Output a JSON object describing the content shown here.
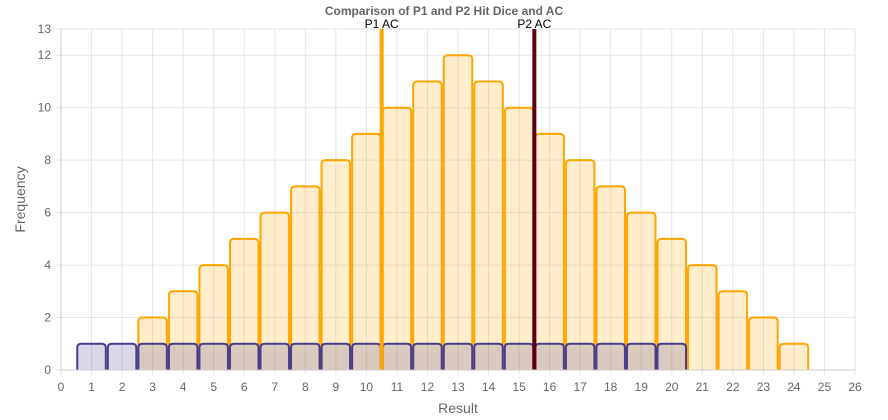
{
  "chart_data": {
    "type": "bar",
    "title": "Comparison of P1 and P2 Hit Dice and AC",
    "xlabel": "Result",
    "ylabel": "Frequency",
    "xlim": [
      0,
      26
    ],
    "ylim": [
      0,
      13
    ],
    "x_ticks": [
      0,
      1,
      2,
      3,
      4,
      5,
      6,
      7,
      8,
      9,
      10,
      11,
      12,
      13,
      14,
      15,
      16,
      17,
      18,
      19,
      20,
      21,
      22,
      23,
      24,
      25,
      26
    ],
    "y_ticks": [
      0,
      2,
      4,
      6,
      8,
      10,
      12,
      13
    ],
    "grid": true,
    "series": [
      {
        "color": "#FFA500",
        "fill": "rgba(255,165,0,0.2)",
        "x": [
          3,
          4,
          5,
          6,
          7,
          8,
          9,
          10,
          11,
          12,
          13,
          14,
          15,
          16,
          17,
          18,
          19,
          20,
          21,
          22,
          23,
          24
        ],
        "values": [
          2,
          3,
          4,
          5,
          6,
          7,
          8,
          9,
          10,
          11,
          12,
          11,
          10,
          9,
          8,
          7,
          6,
          5,
          4,
          3,
          2,
          1
        ]
      },
      {
        "color": "#483D8B",
        "fill": "rgba(72,61,139,0.2)",
        "x": [
          1,
          2,
          3,
          4,
          5,
          6,
          7,
          8,
          9,
          10,
          11,
          12,
          13,
          14,
          15,
          16,
          17,
          18,
          19,
          20
        ],
        "values": [
          1,
          1,
          1,
          1,
          1,
          1,
          1,
          1,
          1,
          1,
          1,
          1,
          1,
          1,
          1,
          1,
          1,
          1,
          1,
          1
        ]
      }
    ],
    "reference_lines": [
      {
        "label": "P1 AC",
        "x": 10.5,
        "color": "#FFA500"
      },
      {
        "label": "P2 AC",
        "x": 15.5,
        "color": "#5C0011"
      }
    ]
  }
}
